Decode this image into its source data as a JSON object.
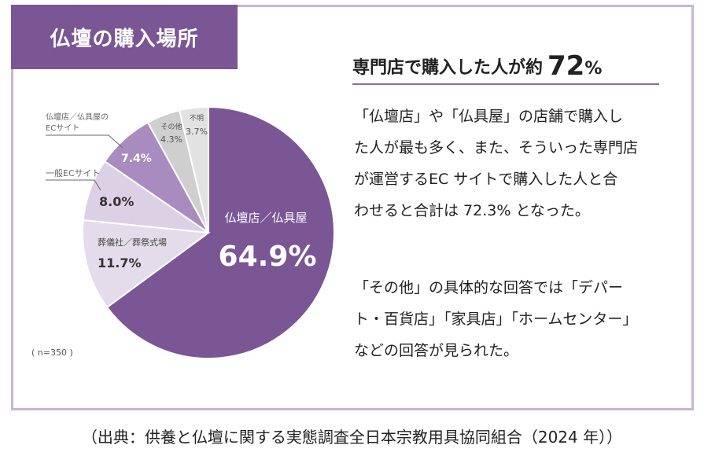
{
  "title": "仏壇の購入場所",
  "headline": {
    "text": "専門店で購入した人が約",
    "number": "72",
    "unit": "%"
  },
  "paragraph1": [
    "「仏壇店」や「仏具屋」の店舗で購入し",
    "た人が最も多く、また、そういった専門店",
    "が運営するEC サイトで購入した人と合",
    "わせると合計は 72.3% となった。"
  ],
  "paragraph2": [
    "「その他」の具体的な回答では「デパー",
    "ト・百貨店」「家具店」「ホームセンター」",
    "などの回答が見られた。"
  ],
  "source": "（出典：供養と仏壇に関する実態調査全日本宗教用具協同組合（2024 年））",
  "chart_data": {
    "type": "pie",
    "n_label": "( n=350 )",
    "slices": [
      {
        "label": "仏壇店／仏具屋",
        "value": 64.9,
        "value_label": "64.9%",
        "color": "#7a5695"
      },
      {
        "label": "葬儀社／葬祭式場",
        "value": 11.7,
        "value_label": "11.7%",
        "color": "#e4dcea"
      },
      {
        "label": "一般ECサイト",
        "value": 8.0,
        "value_label": "8.0%",
        "color": "#dcd0e4"
      },
      {
        "label_lines": [
          "仏壇店／仏具屋の",
          "ECサイト"
        ],
        "value": 7.4,
        "value_label": "7.4%",
        "color": "#a88cc0"
      },
      {
        "label": "その他",
        "value": 4.3,
        "value_label": "4.3%",
        "color": "#cfcfcf"
      },
      {
        "label": "不明",
        "value": 3.7,
        "value_label": "3.7%",
        "color": "#e2e2e2"
      }
    ]
  }
}
